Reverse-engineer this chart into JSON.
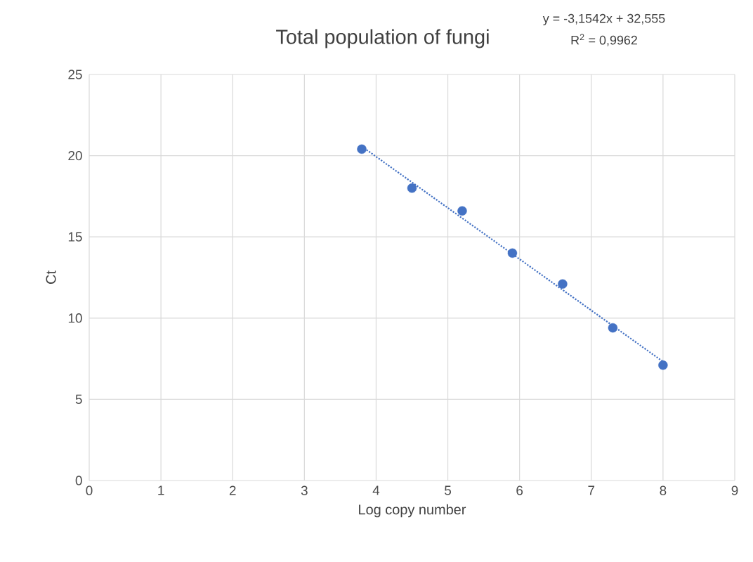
{
  "chart_data": {
    "type": "scatter",
    "title": "Total population of fungi",
    "xlabel": "Log copy number",
    "ylabel": "Ct",
    "annotations": [
      "y = -3,1542x + 32,555",
      "R$^{2}$ = 0,9962"
    ],
    "series": [
      {
        "color": "#4472c4",
        "x": [
          3.8,
          4.5,
          5.2,
          5.9,
          6.6,
          7.3,
          8.0
        ],
        "values": [
          20.4,
          18.0,
          16.6,
          14.0,
          12.1,
          9.4,
          7.1
        ]
      },
      {
        "type": "line",
        "marker": "none",
        "line_style": "dotted",
        "color": "#4472c4",
        "x": [
          3.8,
          8.0
        ],
        "values": [
          20.57,
          7.32
        ]
      }
    ],
    "xlim": [
      0,
      9
    ],
    "xticks": [
      0,
      1,
      2,
      3,
      4,
      5,
      6,
      7,
      8,
      9
    ],
    "ylim": [
      0,
      25
    ],
    "yticks": [
      0,
      5,
      10,
      15,
      20,
      25
    ],
    "grid": true,
    "marker": "circle"
  }
}
